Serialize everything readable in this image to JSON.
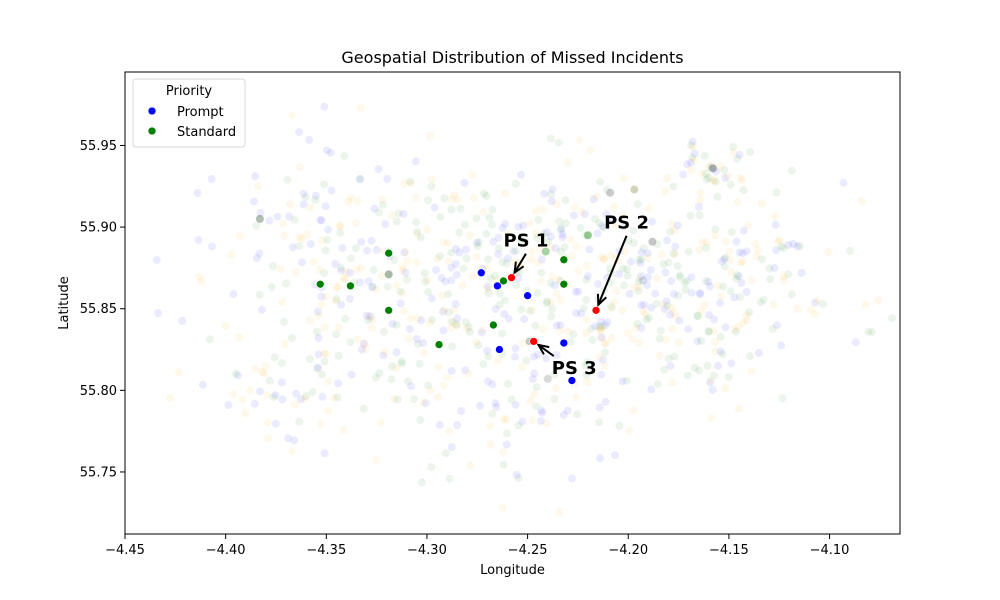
{
  "chart_data": {
    "type": "scatter",
    "title": "Geospatial Distribution of Missed Incidents",
    "xlabel": "Longitude",
    "ylabel": "Latitude",
    "xlim": [
      -4.45,
      -4.065
    ],
    "ylim": [
      55.712,
      55.995
    ],
    "xticks": [
      -4.45,
      -4.4,
      -4.35,
      -4.3,
      -4.25,
      -4.2,
      -4.15,
      -4.1
    ],
    "xtick_labels": [
      "−4.45",
      "−4.40",
      "−4.35",
      "−4.30",
      "−4.25",
      "−4.20",
      "−4.15",
      "−4.10"
    ],
    "yticks": [
      55.75,
      55.8,
      55.85,
      55.9,
      55.95
    ],
    "ytick_labels": [
      "55.75",
      "55.80",
      "55.85",
      "55.90",
      "55.95"
    ],
    "grid": false,
    "legend": {
      "title": "Priority",
      "placement": "top-left",
      "entries": [
        {
          "label": "Prompt",
          "color": "#0000ff"
        },
        {
          "label": "Standard",
          "color": "#008000"
        }
      ]
    },
    "background_points": {
      "count": 900,
      "opacity": 0.08,
      "colors": [
        "#0000ff",
        "#008000",
        "#ffa500"
      ],
      "clusters": [
        {
          "cx": -4.255,
          "cy": 55.86,
          "sx": 0.055,
          "sy": 0.035,
          "w": 0.34
        },
        {
          "cx": -4.34,
          "cy": 55.875,
          "sx": 0.035,
          "sy": 0.04,
          "w": 0.2
        },
        {
          "cx": -4.18,
          "cy": 55.855,
          "sx": 0.035,
          "sy": 0.03,
          "w": 0.14
        },
        {
          "cx": -4.14,
          "cy": 55.87,
          "sx": 0.025,
          "sy": 0.03,
          "w": 0.07
        },
        {
          "cx": -4.16,
          "cy": 55.935,
          "sx": 0.01,
          "sy": 0.01,
          "w": 0.04
        },
        {
          "cx": -4.37,
          "cy": 55.8,
          "sx": 0.03,
          "sy": 0.015,
          "w": 0.06
        },
        {
          "cx": -4.255,
          "cy": 55.78,
          "sx": 0.03,
          "sy": 0.02,
          "w": 0.07
        },
        {
          "cx": -4.22,
          "cy": 55.9,
          "sx": 0.04,
          "sy": 0.02,
          "w": 0.08
        }
      ]
    },
    "series": [
      {
        "name": "Prompt",
        "color": "#0000ff",
        "x": [
          -4.273,
          -4.265,
          -4.25,
          -4.232,
          -4.264,
          -4.228
        ],
        "y": [
          55.872,
          55.864,
          55.858,
          55.829,
          55.825,
          55.806
        ]
      },
      {
        "name": "Standard",
        "color": "#008000",
        "x": [
          -4.262,
          -4.232,
          -4.232,
          -4.319,
          -4.353,
          -4.338,
          -4.319,
          -4.267,
          -4.294
        ],
        "y": [
          55.867,
          55.88,
          55.865,
          55.884,
          55.865,
          55.864,
          55.849,
          55.84,
          55.828
        ]
      }
    ],
    "extra_points": [
      {
        "x": -4.241,
        "y": 55.885,
        "color": "#008000",
        "opacity": 0.35
      },
      {
        "x": -4.22,
        "y": 55.895,
        "color": "#008000",
        "opacity": 0.4
      },
      {
        "x": -4.188,
        "y": 55.891,
        "color": "#808080",
        "opacity": 0.45
      },
      {
        "x": -4.209,
        "y": 55.921,
        "color": "#808080",
        "opacity": 0.4
      },
      {
        "x": -4.197,
        "y": 55.923,
        "color": "#808040",
        "opacity": 0.35
      },
      {
        "x": -4.158,
        "y": 55.936,
        "color": "#406080",
        "opacity": 0.45
      },
      {
        "x": -4.383,
        "y": 55.905,
        "color": "#406040",
        "opacity": 0.4
      },
      {
        "x": -4.249,
        "y": 55.83,
        "color": "#808080",
        "opacity": 0.45
      },
      {
        "x": -4.24,
        "y": 55.807,
        "color": "#808080",
        "opacity": 0.3
      },
      {
        "x": -4.319,
        "y": 55.871,
        "color": "#406040",
        "opacity": 0.45
      }
    ],
    "highlights": [
      {
        "label": "PS 1",
        "x": -4.258,
        "y": 55.869,
        "label_x": -4.262,
        "label_y": 55.888,
        "color": "#ff0000"
      },
      {
        "label": "PS 2",
        "x": -4.216,
        "y": 55.849,
        "label_x": -4.212,
        "label_y": 55.899,
        "color": "#ff0000"
      },
      {
        "label": "PS 3",
        "x": -4.247,
        "y": 55.83,
        "label_x": -4.238,
        "label_y": 55.81,
        "color": "#ff0000"
      }
    ]
  }
}
